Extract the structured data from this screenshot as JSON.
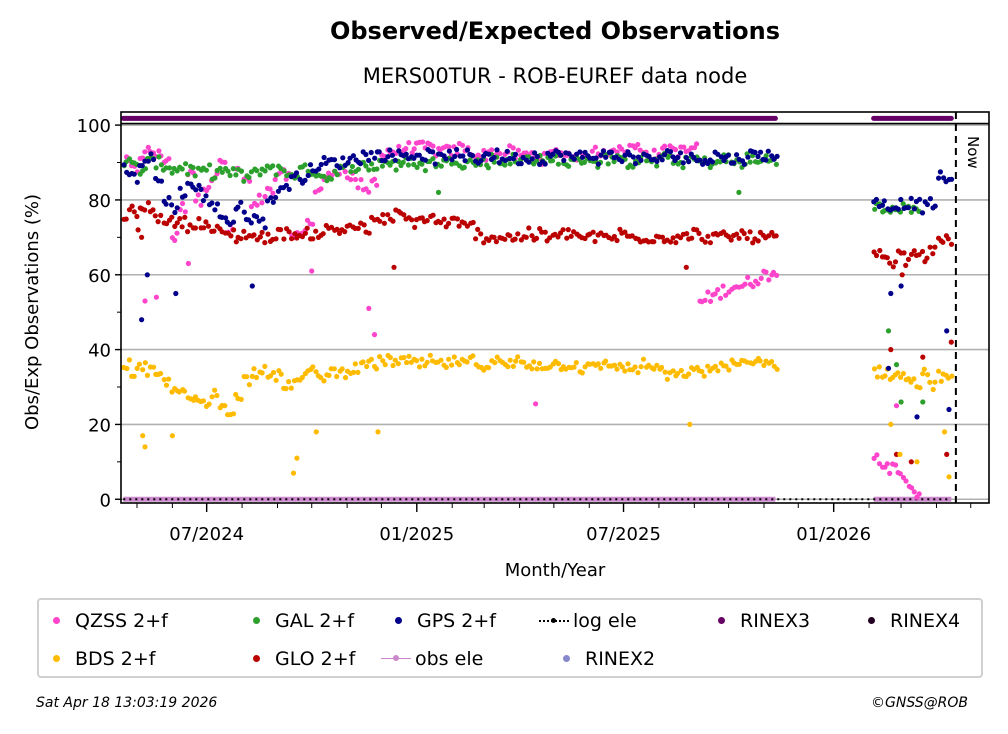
{
  "header": {
    "title": "Observed/Expected Observations",
    "subtitle": "MERS00TUR - ROB-EUREF data node"
  },
  "footer": {
    "timestamp": "Sat Apr 18 13:03:19 2026",
    "credit": "©GNSS@ROB"
  },
  "chart_data": {
    "type": "scatter",
    "title": "Observed/Expected Observations",
    "subtitle": "MERS00TUR - ROB-EUREF data node",
    "xlabel": "Month/Year",
    "ylabel": "Obs/Exp Observations (%)",
    "xlim": [
      "2024-04-17",
      "2026-05-17"
    ],
    "ylim": [
      -1,
      103.5
    ],
    "y_ticks": [
      0,
      20,
      40,
      60,
      80,
      100
    ],
    "y_minor_ticks": [
      10,
      30,
      50,
      70,
      90
    ],
    "x_ticks": [
      {
        "date": "2024-07-01",
        "label": "07/2024"
      },
      {
        "date": "2025-01-01",
        "label": "01/2025"
      },
      {
        "date": "2025-07-01",
        "label": "07/2025"
      },
      {
        "date": "2026-01-01",
        "label": "01/2026"
      }
    ],
    "x_minor_tick_interval": "month",
    "grid": "y-major",
    "now_marker": {
      "date": "2026-04-18",
      "label": "Now"
    },
    "legend_placement": "bottom",
    "sampling": "weekly approximate values read from the chart; each entry is the start date of a 7-day block",
    "segments": [
      {
        "start": "2024-04-19",
        "weeks": 82
      },
      {
        "start": "2026-02-05",
        "weeks": 10
      }
    ],
    "series": [
      {
        "name": "QZSS 2+f",
        "color": "#ff44cc",
        "kind": "points",
        "values": [
          90,
          88,
          92,
          93,
          92,
          91,
          70,
          78,
          88,
          80,
          84,
          86,
          90,
          72,
          88,
          85,
          78,
          80,
          82,
          86,
          87,
          70,
          72,
          74,
          82,
          86,
          88,
          88,
          86,
          84,
          82,
          85,
          92,
          93,
          93,
          94,
          94,
          94,
          94,
          93,
          93,
          93,
          94,
          93,
          92,
          92,
          93,
          92,
          93,
          92,
          92,
          92,
          91,
          92,
          93,
          92,
          92,
          91,
          92,
          93,
          93,
          94,
          93,
          94,
          94,
          93,
          92,
          93,
          94,
          93,
          93,
          94,
          53,
          54,
          55,
          56,
          57,
          57,
          58,
          59,
          60,
          61,
          11,
          10,
          8,
          6,
          4,
          2,
          null,
          null,
          null,
          null
        ]
      },
      {
        "name": "GAL 2+f",
        "color": "#2ca02c",
        "kind": "points",
        "values": [
          90,
          89,
          88,
          90,
          90,
          89,
          88,
          89,
          88,
          87,
          88,
          87,
          88,
          87,
          87,
          86,
          87,
          88,
          89,
          88,
          87,
          87,
          88,
          88,
          87,
          86,
          87,
          88,
          89,
          89,
          89,
          89,
          90,
          90,
          89,
          90,
          90,
          89,
          90,
          90,
          90,
          91,
          90,
          90,
          90,
          90,
          91,
          90,
          91,
          90,
          91,
          91,
          91,
          90,
          91,
          90,
          90,
          91,
          91,
          90,
          91,
          91,
          90,
          90,
          91,
          91,
          90,
          91,
          91,
          90,
          90,
          91,
          90,
          90,
          90,
          91,
          90,
          90,
          91,
          90,
          91,
          91,
          78,
          77,
          77,
          78,
          77,
          78,
          null,
          null,
          null,
          null
        ]
      },
      {
        "name": "GPS 2+f",
        "color": "#00008b",
        "kind": "points",
        "values": [
          88,
          86,
          90,
          91,
          85,
          80,
          78,
          82,
          84,
          83,
          80,
          78,
          76,
          74,
          78,
          76,
          75,
          74,
          80,
          82,
          84,
          86,
          86,
          88,
          89,
          90,
          90,
          90,
          91,
          91,
          92,
          92,
          92,
          92,
          92,
          92,
          92,
          92,
          92,
          91,
          92,
          92,
          91,
          92,
          91,
          92,
          92,
          91,
          92,
          91,
          91,
          92,
          91,
          92,
          92,
          92,
          91,
          92,
          92,
          91,
          92,
          92,
          91,
          92,
          91,
          91,
          91,
          91,
          92,
          92,
          91,
          91,
          91,
          91,
          92,
          91,
          91,
          91,
          92,
          92,
          92,
          92,
          79,
          79,
          78,
          79,
          79,
          79,
          78,
          79,
          86,
          85
        ]
      },
      {
        "name": "GLO 2+f",
        "color": "#bb0000",
        "kind": "points",
        "values": [
          76,
          77,
          77,
          78,
          75,
          75,
          74,
          74,
          73,
          74,
          73,
          72,
          71,
          71,
          70,
          71,
          70,
          70,
          70,
          71,
          71,
          71,
          70,
          71,
          71,
          72,
          72,
          72,
          73,
          73,
          72,
          74,
          75,
          75,
          76,
          75,
          74,
          75,
          75,
          74,
          74,
          74,
          73,
          73,
          71,
          70,
          70,
          70,
          70,
          70,
          71,
          70,
          71,
          70,
          70,
          71,
          71,
          70,
          70,
          70,
          70,
          70,
          71,
          70,
          70,
          70,
          70,
          70,
          70,
          70,
          70,
          71,
          70,
          70,
          70,
          70,
          70,
          71,
          70,
          70,
          70,
          70,
          65,
          64,
          63,
          65,
          64,
          66,
          65,
          66,
          70,
          69
        ]
      },
      {
        "name": "BDS 2+f",
        "color": "#ffbb00",
        "kind": "points",
        "values": [
          36,
          34,
          35,
          34,
          33,
          31,
          30,
          28,
          27,
          26,
          25,
          28,
          25,
          24,
          27,
          32,
          34,
          35,
          34,
          33,
          30,
          31,
          33,
          34,
          33,
          33,
          34,
          34,
          35,
          35,
          36,
          36,
          37,
          37,
          37,
          37,
          36,
          36,
          37,
          36,
          36,
          37,
          36,
          37,
          36,
          36,
          37,
          36,
          36,
          37,
          36,
          36,
          36,
          36,
          36,
          36,
          36,
          35,
          35,
          36,
          36,
          36,
          35,
          35,
          35,
          36,
          35,
          34,
          33,
          33,
          34,
          34,
          34,
          35,
          35,
          36,
          36,
          36,
          36,
          37,
          37,
          36,
          34,
          34,
          33,
          33,
          32,
          31,
          34,
          30,
          33,
          32
        ]
      },
      {
        "name": "log ele",
        "color": "#000000",
        "kind": "dotted-line",
        "values_note": "constant 0 across full data range",
        "range": [
          "2024-04-19",
          "2026-04-14"
        ],
        "value": 0
      },
      {
        "name": "obs ele",
        "color": "#cc88cc",
        "kind": "line-band",
        "ranges": [
          [
            "2024-04-19",
            "2025-11-11"
          ],
          [
            "2026-02-05",
            "2026-04-14"
          ]
        ],
        "value": 0
      },
      {
        "name": "RINEX3",
        "color": "#660066",
        "kind": "band",
        "ranges": [
          [
            "2024-04-19",
            "2025-11-11"
          ],
          [
            "2026-02-05",
            "2026-04-14"
          ]
        ],
        "value": 101.8
      },
      {
        "name": "RINEX2",
        "color": "#8888cc",
        "kind": "band",
        "ranges": []
      },
      {
        "name": "RINEX4",
        "color": "#220022",
        "kind": "band",
        "ranges": []
      }
    ],
    "outliers": [
      {
        "series": "GPS 2+f",
        "points": [
          [
            "2024-05-05",
            48
          ],
          [
            "2024-06-04",
            55
          ],
          [
            "2024-05-10",
            60
          ],
          [
            "2024-08-10",
            57
          ],
          [
            "2026-02-20",
            55
          ],
          [
            "2026-03-01",
            57
          ],
          [
            "2026-04-10",
            45
          ],
          [
            "2026-04-12",
            24
          ],
          [
            "2026-02-18",
            35
          ],
          [
            "2026-03-15",
            22
          ]
        ]
      },
      {
        "series": "QZSS 2+f",
        "points": [
          [
            "2024-05-08",
            53
          ],
          [
            "2024-05-18",
            54
          ],
          [
            "2024-11-25",
            44
          ],
          [
            "2024-11-20",
            51
          ],
          [
            "2024-06-15",
            63
          ],
          [
            "2024-10-01",
            61
          ],
          [
            "2025-04-15",
            25.5
          ],
          [
            "2026-02-25",
            25
          ]
        ]
      },
      {
        "series": "GLO 2+f",
        "points": [
          [
            "2024-05-02",
            72
          ],
          [
            "2024-05-05",
            70
          ],
          [
            "2024-12-12",
            62
          ],
          [
            "2025-08-25",
            62
          ],
          [
            "2026-03-02",
            60
          ],
          [
            "2026-04-14",
            42
          ],
          [
            "2026-02-20",
            40
          ],
          [
            "2026-02-25",
            12
          ],
          [
            "2026-03-10",
            10
          ],
          [
            "2026-04-10",
            12
          ],
          [
            "2026-03-20",
            38
          ]
        ]
      },
      {
        "series": "GAL 2+f",
        "points": [
          [
            "2025-01-20",
            82
          ],
          [
            "2025-10-10",
            82
          ],
          [
            "2026-02-18",
            45
          ],
          [
            "2026-02-25",
            36
          ],
          [
            "2026-03-01",
            26
          ],
          [
            "2026-03-20",
            26
          ]
        ]
      },
      {
        "series": "BDS 2+f",
        "points": [
          [
            "2024-05-06",
            17
          ],
          [
            "2024-05-08",
            14
          ],
          [
            "2024-06-01",
            17
          ],
          [
            "2024-09-15",
            7
          ],
          [
            "2024-09-18",
            11
          ],
          [
            "2024-10-05",
            18
          ],
          [
            "2024-11-28",
            18
          ],
          [
            "2025-08-28",
            20
          ],
          [
            "2026-02-20",
            20
          ],
          [
            "2026-02-28",
            12
          ],
          [
            "2026-03-15",
            10
          ],
          [
            "2026-04-12",
            6
          ],
          [
            "2026-04-08",
            18
          ]
        ]
      }
    ]
  },
  "legend": {
    "items": [
      {
        "label": "QZSS 2+f",
        "color": "#ff44cc",
        "marker": "dot"
      },
      {
        "label": "GAL 2+f",
        "color": "#2ca02c",
        "marker": "dot"
      },
      {
        "label": "GPS 2+f",
        "color": "#00008b",
        "marker": "dot"
      },
      {
        "label": "log ele",
        "color": "#000000",
        "marker": "dotted-line"
      },
      {
        "label": "RINEX3",
        "color": "#660066",
        "marker": "dot"
      },
      {
        "label": "RINEX4",
        "color": "#220022",
        "marker": "dot"
      },
      {
        "label": "BDS 2+f",
        "color": "#ffbb00",
        "marker": "dot"
      },
      {
        "label": "GLO 2+f",
        "color": "#bb0000",
        "marker": "dot"
      },
      {
        "label": "obs ele",
        "color": "#cc88cc",
        "marker": "line"
      },
      {
        "label": "RINEX2",
        "color": "#8888cc",
        "marker": "dot"
      }
    ]
  }
}
